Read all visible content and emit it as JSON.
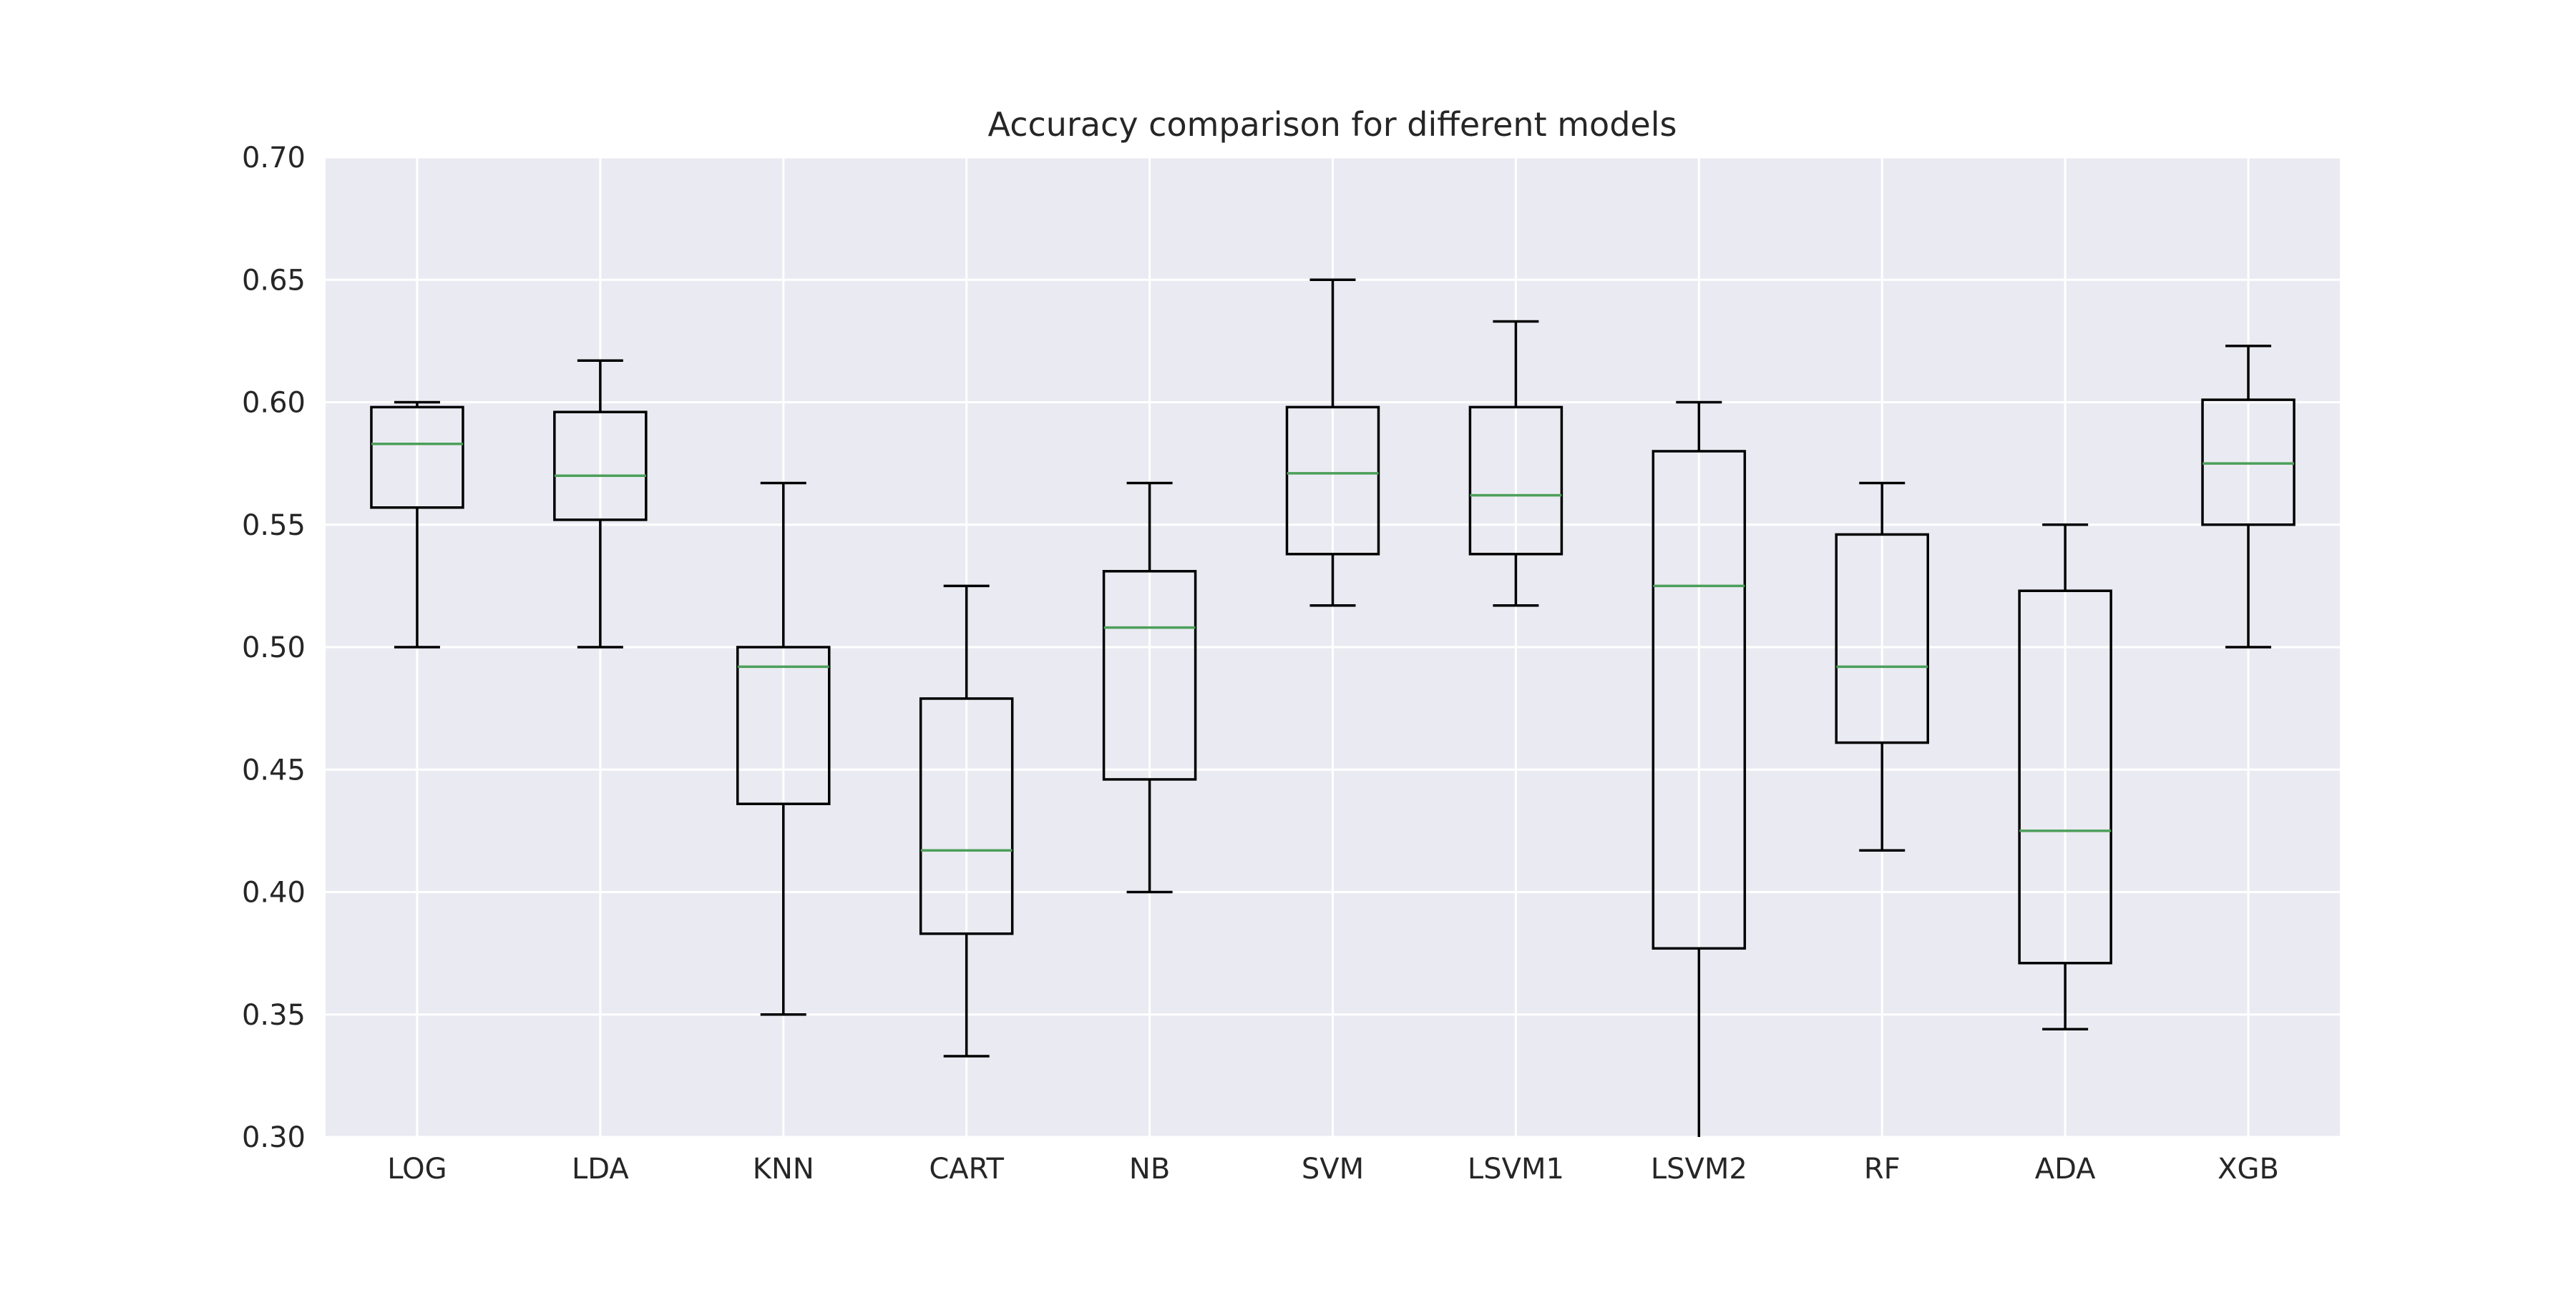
{
  "chart_data": {
    "type": "box",
    "title": "Accuracy comparison for different models",
    "xlabel": "",
    "ylabel": "",
    "ylim": [
      0.3,
      0.7
    ],
    "yticks": [
      "0.30",
      "0.35",
      "0.40",
      "0.45",
      "0.50",
      "0.55",
      "0.60",
      "0.65",
      "0.70"
    ],
    "grid": true,
    "legend": "none",
    "colors": {
      "plot_background": "#eaeaf2",
      "grid": "#ffffff",
      "box": "#000000",
      "median": "#4c9f5a",
      "text": "#262626"
    },
    "categories": [
      "LOG",
      "LDA",
      "KNN",
      "CART",
      "NB",
      "SVM",
      "LSVM1",
      "LSVM2",
      "RF",
      "ADA",
      "XGB"
    ],
    "boxes": [
      {
        "label": "LOG",
        "whisker_low": 0.5,
        "q1": 0.557,
        "median": 0.583,
        "q3": 0.598,
        "whisker_high": 0.6
      },
      {
        "label": "LDA",
        "whisker_low": 0.5,
        "q1": 0.552,
        "median": 0.57,
        "q3": 0.596,
        "whisker_high": 0.617
      },
      {
        "label": "KNN",
        "whisker_low": 0.35,
        "q1": 0.436,
        "median": 0.492,
        "q3": 0.5,
        "whisker_high": 0.567
      },
      {
        "label": "CART",
        "whisker_low": 0.333,
        "q1": 0.383,
        "median": 0.417,
        "q3": 0.479,
        "whisker_high": 0.525
      },
      {
        "label": "NB",
        "whisker_low": 0.4,
        "q1": 0.446,
        "median": 0.508,
        "q3": 0.531,
        "whisker_high": 0.567
      },
      {
        "label": "SVM",
        "whisker_low": 0.517,
        "q1": 0.538,
        "median": 0.571,
        "q3": 0.598,
        "whisker_high": 0.65
      },
      {
        "label": "LSVM1",
        "whisker_low": 0.517,
        "q1": 0.538,
        "median": 0.562,
        "q3": 0.598,
        "whisker_high": 0.633
      },
      {
        "label": "LSVM2",
        "whisker_low": 0.3,
        "q1": 0.377,
        "median": 0.525,
        "q3": 0.58,
        "whisker_high": 0.6
      },
      {
        "label": "RF",
        "whisker_low": 0.417,
        "q1": 0.461,
        "median": 0.492,
        "q3": 0.546,
        "whisker_high": 0.567
      },
      {
        "label": "ADA",
        "whisker_low": 0.344,
        "q1": 0.371,
        "median": 0.425,
        "q3": 0.523,
        "whisker_high": 0.55
      },
      {
        "label": "XGB",
        "whisker_low": 0.5,
        "q1": 0.55,
        "median": 0.575,
        "q3": 0.601,
        "whisker_high": 0.623
      }
    ]
  }
}
